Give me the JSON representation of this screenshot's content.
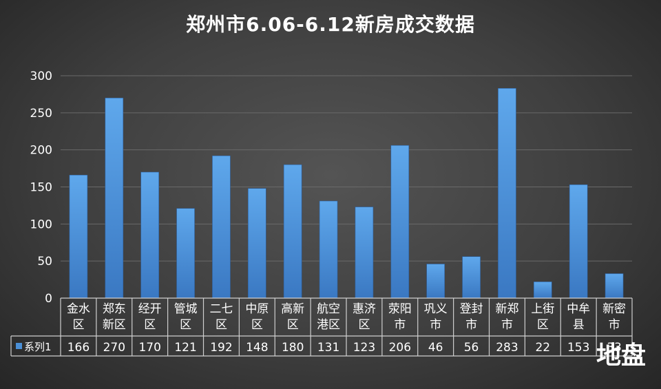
{
  "chart_data": {
    "type": "bar",
    "title": "郑州市6.06-6.12新房成交数据",
    "xlabel": "",
    "ylabel": "",
    "ylim": [
      0,
      300
    ],
    "yticks": [
      0,
      50,
      100,
      150,
      200,
      250,
      300
    ],
    "grid": true,
    "legend": "table-row-left",
    "categories": [
      [
        "金水",
        "区"
      ],
      [
        "郑东",
        "新区"
      ],
      [
        "经开",
        "区"
      ],
      [
        "管城",
        "区"
      ],
      [
        "二七",
        "区"
      ],
      [
        "中原",
        "区"
      ],
      [
        "高新",
        "区"
      ],
      [
        "航空",
        "港区"
      ],
      [
        "惠济",
        "区"
      ],
      [
        "荥阳",
        "市"
      ],
      [
        "巩义",
        "市"
      ],
      [
        "登封",
        "市"
      ],
      [
        "新郑",
        "市"
      ],
      [
        "上街",
        "区"
      ],
      [
        "中牟",
        "县"
      ],
      [
        "新密",
        "市"
      ]
    ],
    "series": [
      {
        "name": "系列1",
        "values": [
          166,
          270,
          170,
          121,
          192,
          148,
          180,
          131,
          123,
          206,
          46,
          56,
          283,
          22,
          153,
          33
        ],
        "labels": [
          "166",
          "270",
          "170",
          "121",
          "192",
          "148",
          "180",
          "131",
          "123",
          "206",
          "46",
          "56",
          "283",
          "22",
          "153",
          "33"
        ],
        "color": "#4a8fd6"
      }
    ]
  },
  "colors": {
    "bar_top": "#5fa8ec",
    "bar_bottom": "#3a78c2",
    "grid": "#6a6a6a",
    "table_border": "#d0d0d0",
    "text": "#ffffff"
  },
  "watermark": "地盘"
}
